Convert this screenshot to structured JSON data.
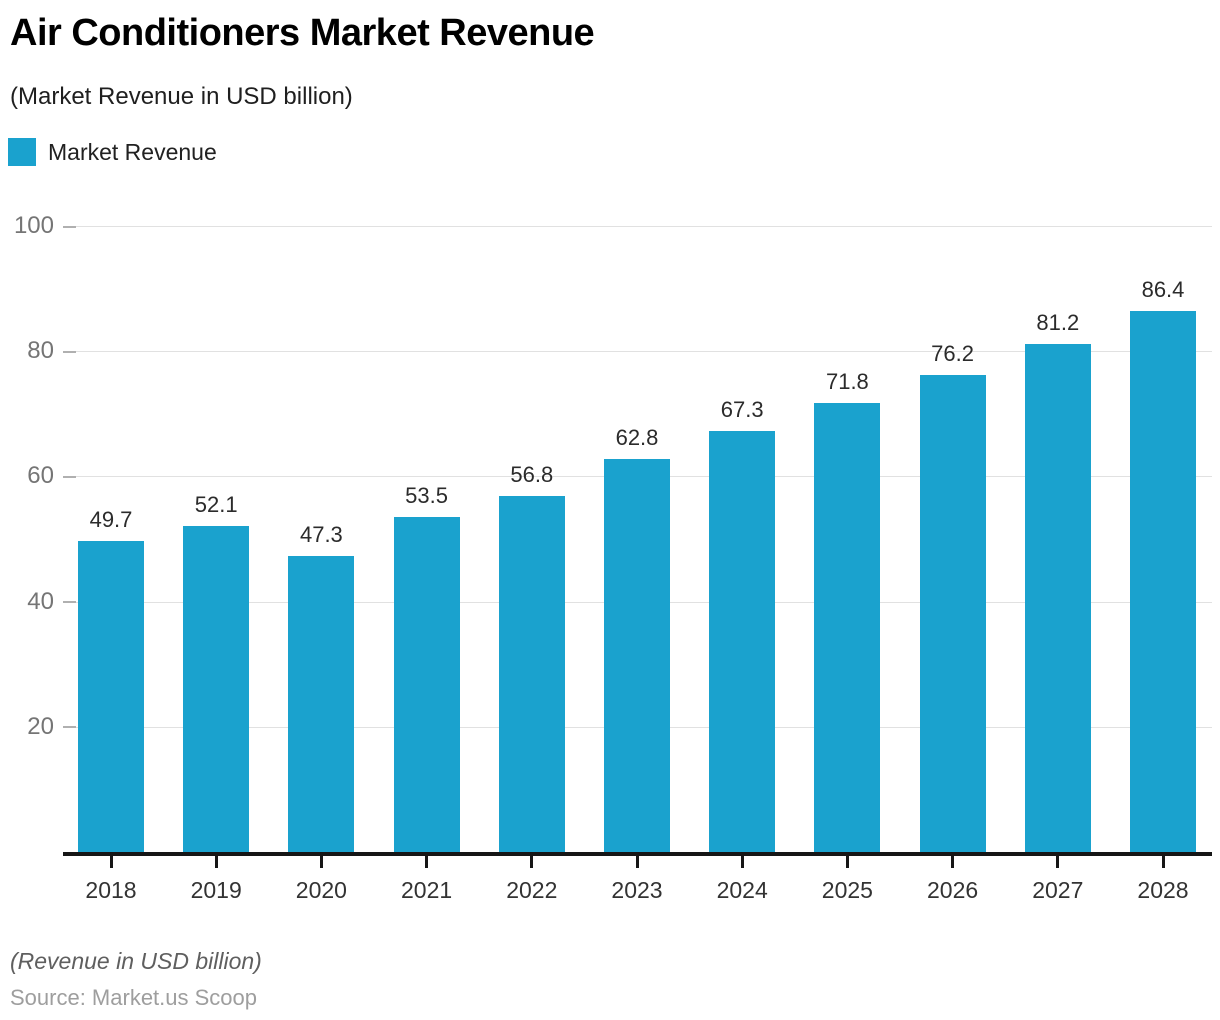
{
  "header": {
    "title": "Air Conditioners Market Revenue",
    "subtitle": "(Market Revenue in USD billion)"
  },
  "legend": {
    "label": "Market Revenue",
    "swatch_color": "#1aa2ce"
  },
  "chart_data": {
    "type": "bar",
    "title": "Air Conditioners Market Revenue",
    "subtitle": "(Market Revenue in USD billion)",
    "categories": [
      "2018",
      "2019",
      "2020",
      "2021",
      "2022",
      "2023",
      "2024",
      "2025",
      "2026",
      "2027",
      "2028"
    ],
    "series": [
      {
        "name": "Market Revenue",
        "values": [
          49.7,
          52.1,
          47.3,
          53.5,
          56.8,
          62.8,
          67.3,
          71.8,
          76.2,
          81.2,
          86.4
        ]
      }
    ],
    "bar_color": "#1aa2ce",
    "grid_color": "#e1e1e1",
    "xlabel": "",
    "ylabel": "",
    "ylim": [
      0,
      100
    ],
    "yticks": [
      20,
      40,
      60,
      80,
      100
    ],
    "grid": true,
    "legend_position": "top-left",
    "value_labels": true
  },
  "footer": {
    "note": "(Revenue in USD billion)",
    "source": "Source: Market.us Scoop"
  }
}
